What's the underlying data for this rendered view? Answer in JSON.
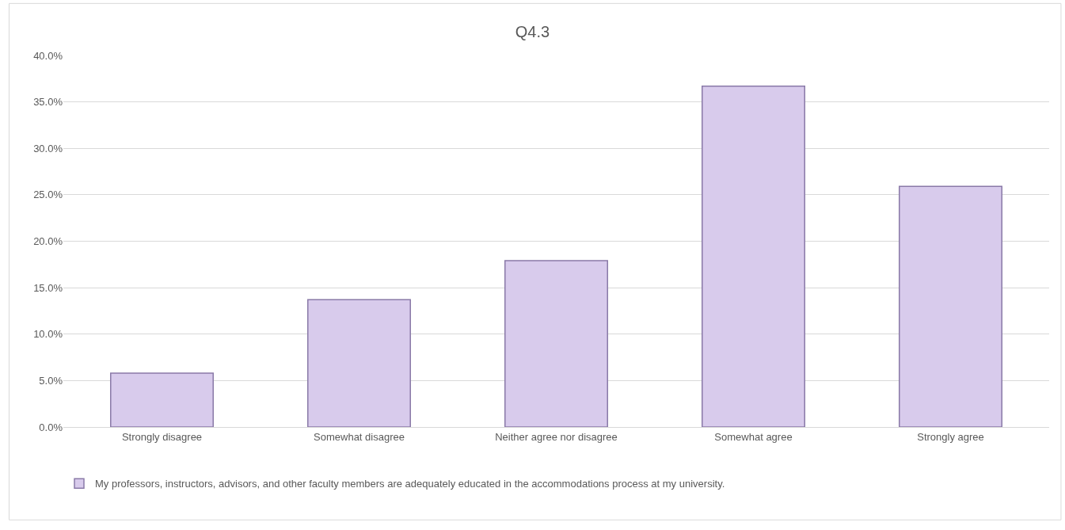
{
  "chart_data": {
    "type": "bar",
    "title": "Q4.3",
    "categories": [
      "Strongly disagree",
      "Somewhat disagree",
      "Neither agree nor disagree",
      "Somewhat agree",
      "Strongly agree"
    ],
    "series": [
      {
        "name": "My professors, instructors, advisors, and other faculty members are adequately educated in the accommodations process at my university.",
        "color": "#d8cbec",
        "values": [
          5.8,
          13.7,
          17.9,
          36.7,
          25.9
        ]
      }
    ],
    "ylim": [
      0,
      40
    ],
    "yticks": [
      {
        "value": 0,
        "label": "0.0%"
      },
      {
        "value": 5,
        "label": "5.0%"
      },
      {
        "value": 10,
        "label": "10.0%"
      },
      {
        "value": 15,
        "label": "15.0%"
      },
      {
        "value": 20,
        "label": "20.0%"
      },
      {
        "value": 25,
        "label": "25.0%"
      },
      {
        "value": 30,
        "label": "30.0%"
      },
      {
        "value": 35,
        "label": "35.0%"
      },
      {
        "value": 40,
        "label": "40.0%"
      }
    ],
    "grid": "y",
    "legend": "bottom"
  }
}
